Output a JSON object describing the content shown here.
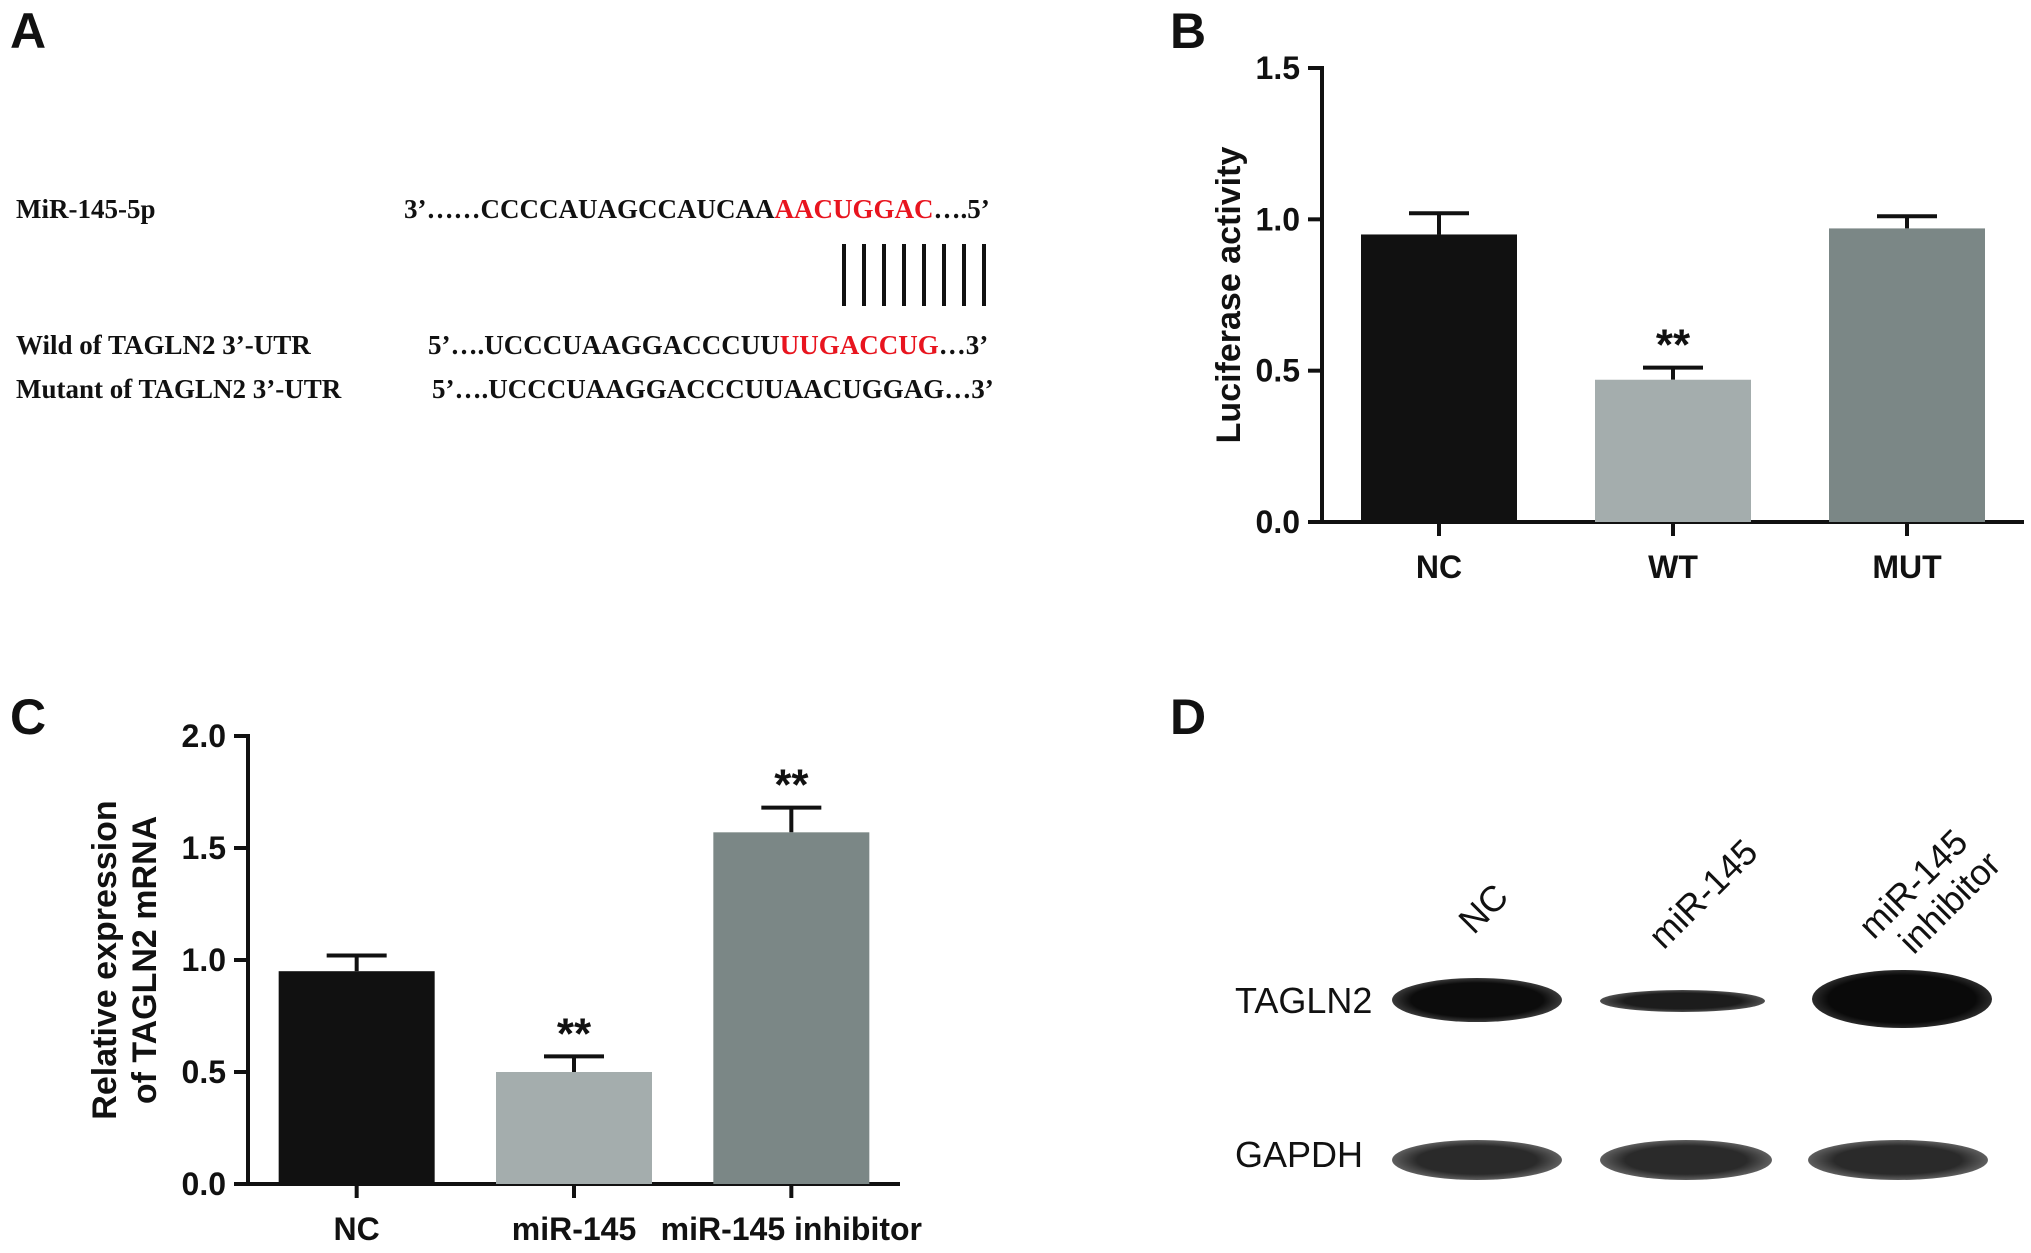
{
  "panels": {
    "a": {
      "letter": "A",
      "rows": [
        {
          "label": "MiR-145-5p",
          "pre": "3’……CCCCAUAGCCAUCAA",
          "red": "AACUGGAC",
          "post": "….5’"
        },
        {
          "label": "Wild of TAGLN2 3’-UTR",
          "pre": "5’….UCCCUAAGGACCCUU",
          "red": "UUGACCUG",
          "post": "…3’"
        },
        {
          "label": "Mutant of TAGLN2 3’-UTR",
          "pre": "5’….UCCCUAAGGACCCUUAACUGGAG…3’",
          "red": "",
          "post": ""
        }
      ],
      "pairing_lines": 8
    },
    "b": {
      "letter": "B"
    },
    "c": {
      "letter": "C"
    },
    "d": {
      "letter": "D",
      "lanes": [
        "NC",
        "miR-145",
        "miR-145",
        "inhibitor"
      ],
      "rows": [
        "TAGLN2",
        "GAPDH"
      ]
    }
  },
  "chart_data": [
    {
      "type": "bar",
      "panel": "B",
      "categories": [
        "NC",
        "WT",
        "MUT"
      ],
      "values": [
        0.95,
        0.47,
        0.97
      ],
      "errors": [
        0.07,
        0.04,
        0.04
      ],
      "annotations": [
        "",
        "**",
        ""
      ],
      "colors": [
        "#111111",
        "#a4adad",
        "#7b8786"
      ],
      "ylabel": "Luciferase activity",
      "ylim": [
        0,
        1.5
      ],
      "yticks": [
        "0.0",
        "0.5",
        "1.0",
        "1.5"
      ]
    },
    {
      "type": "bar",
      "panel": "C",
      "categories": [
        "NC",
        "miR-145",
        "miR-145 inhibitor"
      ],
      "values": [
        0.95,
        0.5,
        1.57
      ],
      "errors": [
        0.07,
        0.07,
        0.11
      ],
      "annotations": [
        "",
        "**",
        "**"
      ],
      "colors": [
        "#111111",
        "#a4adad",
        "#7b8786"
      ],
      "ylabel_lines": [
        "Relative expression",
        "of TAGLN2 mRNA"
      ],
      "ylim": [
        0,
        2.0
      ],
      "yticks": [
        "0.0",
        "0.5",
        "1.0",
        "1.5",
        "2.0"
      ]
    }
  ]
}
